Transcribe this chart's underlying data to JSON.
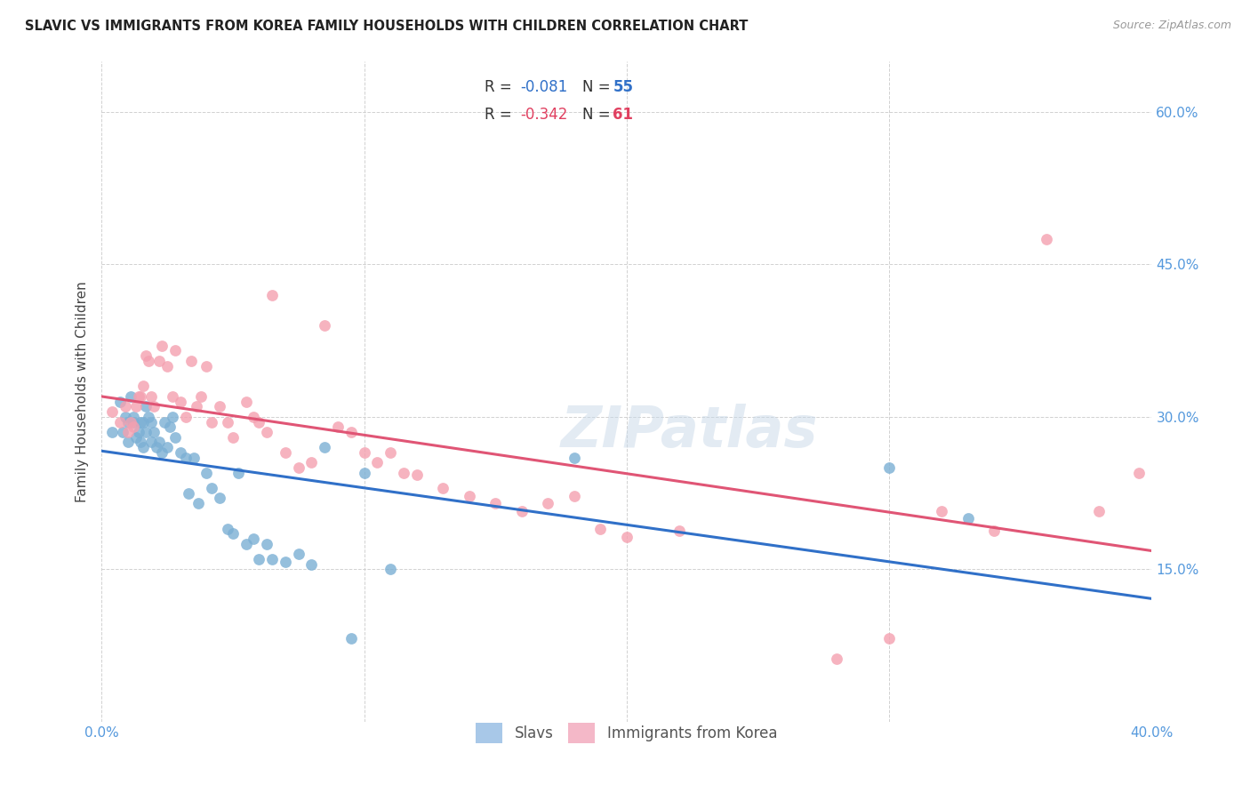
{
  "title": "SLAVIC VS IMMIGRANTS FROM KOREA FAMILY HOUSEHOLDS WITH CHILDREN CORRELATION CHART",
  "source": "Source: ZipAtlas.com",
  "ylabel": "Family Households with Children",
  "x_min": 0.0,
  "x_max": 0.4,
  "y_min": 0.0,
  "y_max": 0.65,
  "slavs_color": "#7bafd4",
  "korea_color": "#f4a0b0",
  "slavs_line_color": "#3070c8",
  "korea_line_color": "#e05575",
  "watermark": "ZIPatlas",
  "slavs_R": "-0.081",
  "slavs_N": "55",
  "korea_R": "-0.342",
  "korea_N": "61",
  "slavs_x": [
    0.004,
    0.007,
    0.008,
    0.009,
    0.01,
    0.01,
    0.011,
    0.012,
    0.012,
    0.013,
    0.014,
    0.015,
    0.015,
    0.016,
    0.016,
    0.017,
    0.017,
    0.018,
    0.019,
    0.019,
    0.02,
    0.021,
    0.022,
    0.023,
    0.024,
    0.025,
    0.026,
    0.027,
    0.028,
    0.03,
    0.032,
    0.033,
    0.035,
    0.037,
    0.04,
    0.042,
    0.045,
    0.048,
    0.05,
    0.052,
    0.055,
    0.058,
    0.06,
    0.063,
    0.065,
    0.07,
    0.075,
    0.08,
    0.085,
    0.095,
    0.1,
    0.11,
    0.18,
    0.3,
    0.33
  ],
  "slavs_y": [
    0.285,
    0.315,
    0.285,
    0.3,
    0.295,
    0.275,
    0.32,
    0.3,
    0.295,
    0.28,
    0.285,
    0.295,
    0.275,
    0.295,
    0.27,
    0.31,
    0.285,
    0.3,
    0.295,
    0.275,
    0.285,
    0.27,
    0.275,
    0.265,
    0.295,
    0.27,
    0.29,
    0.3,
    0.28,
    0.265,
    0.26,
    0.225,
    0.26,
    0.215,
    0.245,
    0.23,
    0.22,
    0.19,
    0.185,
    0.245,
    0.175,
    0.18,
    0.16,
    0.175,
    0.16,
    0.157,
    0.165,
    0.155,
    0.27,
    0.082,
    0.245,
    0.15,
    0.26,
    0.25,
    0.2
  ],
  "korea_x": [
    0.004,
    0.007,
    0.009,
    0.01,
    0.011,
    0.012,
    0.013,
    0.014,
    0.015,
    0.016,
    0.017,
    0.018,
    0.019,
    0.02,
    0.022,
    0.023,
    0.025,
    0.027,
    0.028,
    0.03,
    0.032,
    0.034,
    0.036,
    0.038,
    0.04,
    0.042,
    0.045,
    0.048,
    0.05,
    0.055,
    0.058,
    0.06,
    0.063,
    0.065,
    0.07,
    0.075,
    0.08,
    0.085,
    0.09,
    0.095,
    0.1,
    0.105,
    0.11,
    0.115,
    0.12,
    0.13,
    0.14,
    0.15,
    0.16,
    0.17,
    0.18,
    0.19,
    0.2,
    0.22,
    0.28,
    0.3,
    0.32,
    0.34,
    0.36,
    0.38,
    0.395
  ],
  "korea_y": [
    0.305,
    0.295,
    0.31,
    0.285,
    0.295,
    0.29,
    0.31,
    0.32,
    0.32,
    0.33,
    0.36,
    0.355,
    0.32,
    0.31,
    0.355,
    0.37,
    0.35,
    0.32,
    0.365,
    0.315,
    0.3,
    0.355,
    0.31,
    0.32,
    0.35,
    0.295,
    0.31,
    0.295,
    0.28,
    0.315,
    0.3,
    0.295,
    0.285,
    0.42,
    0.265,
    0.25,
    0.255,
    0.39,
    0.29,
    0.285,
    0.265,
    0.255,
    0.265,
    0.245,
    0.243,
    0.23,
    0.222,
    0.215,
    0.207,
    0.215,
    0.222,
    0.19,
    0.182,
    0.188,
    0.062,
    0.082,
    0.207,
    0.188,
    0.475,
    0.207,
    0.245
  ]
}
